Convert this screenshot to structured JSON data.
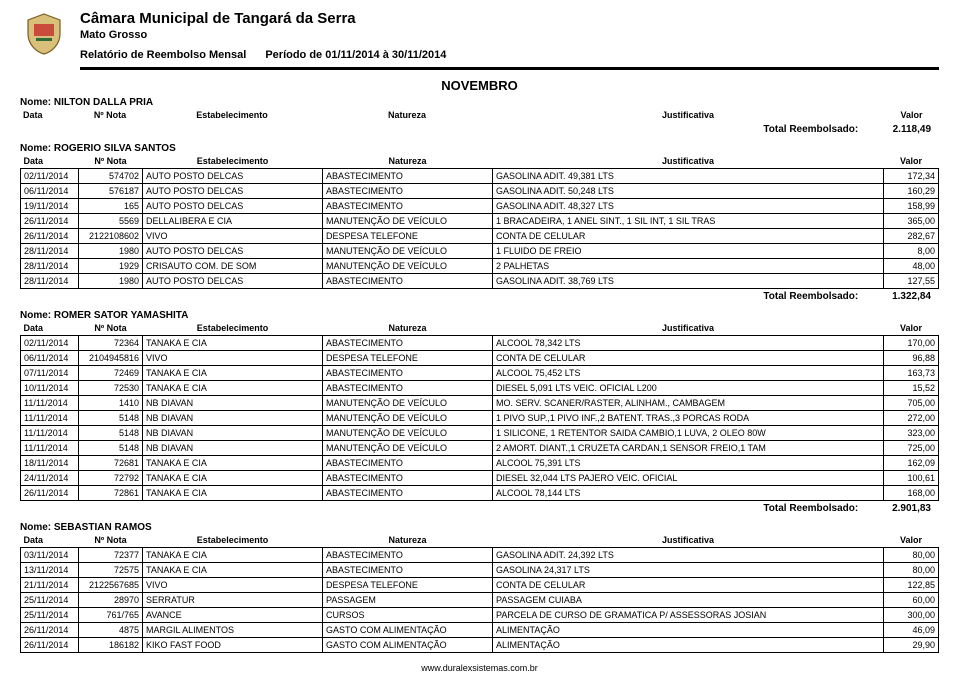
{
  "header": {
    "org": "Câmara Municipal de Tangará da Serra",
    "state": "Mato Grosso",
    "report": "Relatório de Reembolso Mensal",
    "period": "Período de 01/11/2014 à 30/11/2014",
    "month": "NOVEMBRO"
  },
  "columns": {
    "data": "Data",
    "nota": "Nº Nota",
    "estab": "Estabelecimento",
    "natureza": "Natureza",
    "just": "Justificativa",
    "valor": "Valor"
  },
  "labels": {
    "total": "Total Reembolsado:",
    "nome": "Nome:"
  },
  "sections": [
    {
      "nome": "NILTON DALLA PRIA",
      "rows": [],
      "total": "2.118,49"
    },
    {
      "nome": "ROGERIO SILVA SANTOS",
      "rows": [
        {
          "data": "02/11/2014",
          "nota": "574702",
          "estab": "AUTO POSTO DELCAS",
          "nat": "ABASTECIMENTO",
          "just": "GASOLINA ADIT. 49,381 LTS",
          "valor": "172,34"
        },
        {
          "data": "06/11/2014",
          "nota": "576187",
          "estab": "AUTO POSTO DELCAS",
          "nat": "ABASTECIMENTO",
          "just": "GASOLINA ADIT. 50,248 LTS",
          "valor": "160,29"
        },
        {
          "data": "19/11/2014",
          "nota": "165",
          "estab": "AUTO POSTO DELCAS",
          "nat": "ABASTECIMENTO",
          "just": "GASOLINA ADIT. 48,327 LTS",
          "valor": "158,99"
        },
        {
          "data": "26/11/2014",
          "nota": "5569",
          "estab": "DELLALIBERA E CIA",
          "nat": "MANUTENÇÃO DE VEÍCULO",
          "just": "1 BRACADEIRA, 1 ANEL SINT., 1 SIL INT, 1 SIL TRAS",
          "valor": "365,00"
        },
        {
          "data": "26/11/2014",
          "nota": "2122108602",
          "estab": "VIVO",
          "nat": "DESPESA TELEFONE",
          "just": "CONTA DE CELULAR",
          "valor": "282,67"
        },
        {
          "data": "28/11/2014",
          "nota": "1980",
          "estab": "AUTO POSTO DELCAS",
          "nat": "MANUTENÇÃO DE VEÍCULO",
          "just": "1 FLUIDO DE FREIO",
          "valor": "8,00"
        },
        {
          "data": "28/11/2014",
          "nota": "1929",
          "estab": "CRISAUTO COM. DE SOM",
          "nat": "MANUTENÇÃO DE VEÍCULO",
          "just": "2 PALHETAS",
          "valor": "48,00"
        },
        {
          "data": "28/11/2014",
          "nota": "1980",
          "estab": "AUTO POSTO DELCAS",
          "nat": "ABASTECIMENTO",
          "just": "GASOLINA ADIT. 38,769 LTS",
          "valor": "127,55"
        }
      ],
      "total": "1.322,84"
    },
    {
      "nome": "ROMER SATOR YAMASHITA",
      "rows": [
        {
          "data": "02/11/2014",
          "nota": "72364",
          "estab": "TANAKA E CIA",
          "nat": "ABASTECIMENTO",
          "just": "ALCOOL 78,342 LTS",
          "valor": "170,00"
        },
        {
          "data": "06/11/2014",
          "nota": "2104945816",
          "estab": "VIVO",
          "nat": "DESPESA TELEFONE",
          "just": "CONTA DE CELULAR",
          "valor": "96,88"
        },
        {
          "data": "07/11/2014",
          "nota": "72469",
          "estab": "TANAKA E CIA",
          "nat": "ABASTECIMENTO",
          "just": "ALCOOL 75,452 LTS",
          "valor": "163,73"
        },
        {
          "data": "10/11/2014",
          "nota": "72530",
          "estab": "TANAKA E CIA",
          "nat": "ABASTECIMENTO",
          "just": "DIESEL 5,091 LTS VEIC. OFICIAL L200",
          "valor": "15,52"
        },
        {
          "data": "11/11/2014",
          "nota": "1410",
          "estab": "NB DIAVAN",
          "nat": "MANUTENÇÃO DE VEÍCULO",
          "just": "MO. SERV. SCANER/RASTER, ALINHAM., CAMBAGEM",
          "valor": "705,00"
        },
        {
          "data": "11/11/2014",
          "nota": "5148",
          "estab": "NB DIAVAN",
          "nat": "MANUTENÇÃO DE VEÍCULO",
          "just": "1 PIVO SUP.,1 PIVO INF.,2 BATENT. TRAS.,3 PORCAS RODA",
          "valor": "272,00"
        },
        {
          "data": "11/11/2014",
          "nota": "5148",
          "estab": "NB DIAVAN",
          "nat": "MANUTENÇÃO DE VEÍCULO",
          "just": "1 SILICONE, 1 RETENTOR SAIDA CAMBIO,1 LUVA, 2 OLEO 80W",
          "valor": "323,00"
        },
        {
          "data": "11/11/2014",
          "nota": "5148",
          "estab": "NB DIAVAN",
          "nat": "MANUTENÇÃO DE VEÍCULO",
          "just": "2 AMORT. DIANT.,1 CRUZETA CARDAN,1 SENSOR FREIO,1 TAM",
          "valor": "725,00"
        },
        {
          "data": "18/11/2014",
          "nota": "72681",
          "estab": "TANAKA E CIA",
          "nat": "ABASTECIMENTO",
          "just": "ALCOOL 75,391 LTS",
          "valor": "162,09"
        },
        {
          "data": "24/11/2014",
          "nota": "72792",
          "estab": "TANAKA E CIA",
          "nat": "ABASTECIMENTO",
          "just": "DIESEL 32,044 LTS PAJERO VEIC. OFICIAL",
          "valor": "100,61"
        },
        {
          "data": "26/11/2014",
          "nota": "72861",
          "estab": "TANAKA E CIA",
          "nat": "ABASTECIMENTO",
          "just": "ALCOOL 78,144 LTS",
          "valor": "168,00"
        }
      ],
      "total": "2.901,83"
    },
    {
      "nome": "SEBASTIAN RAMOS",
      "rows": [
        {
          "data": "03/11/2014",
          "nota": "72377",
          "estab": "TANAKA E CIA",
          "nat": "ABASTECIMENTO",
          "just": "GASOLINA ADIT. 24,392 LTS",
          "valor": "80,00"
        },
        {
          "data": "13/11/2014",
          "nota": "72575",
          "estab": "TANAKA E CIA",
          "nat": "ABASTECIMENTO",
          "just": "GASOLINA 24,317 LTS",
          "valor": "80,00"
        },
        {
          "data": "21/11/2014",
          "nota": "2122567685",
          "estab": "VIVO",
          "nat": "DESPESA TELEFONE",
          "just": "CONTA DE CELULAR",
          "valor": "122,85"
        },
        {
          "data": "25/11/2014",
          "nota": "28970",
          "estab": "SERRATUR",
          "nat": "PASSAGEM",
          "just": "PASSAGEM CUIABA",
          "valor": "60,00"
        },
        {
          "data": "25/11/2014",
          "nota": "761/765",
          "estab": "AVANCE",
          "nat": "CURSOS",
          "just": "PARCELA DE CURSO DE GRAMATICA P/ ASSESSORAS JOSIAN",
          "valor": "300,00"
        },
        {
          "data": "26/11/2014",
          "nota": "4875",
          "estab": "MARGIL ALIMENTOS",
          "nat": "GASTO COM ALIMENTAÇÃO",
          "just": "ALIMENTAÇÃO",
          "valor": "46,09"
        },
        {
          "data": "26/11/2014",
          "nota": "186182",
          "estab": "KIKO FAST FOOD",
          "nat": "GASTO COM ALIMENTAÇÃO",
          "just": "ALIMENTAÇÃO",
          "valor": "29,90"
        }
      ],
      "total": null
    }
  ],
  "footer": "www.duralexsistemas.com.br"
}
